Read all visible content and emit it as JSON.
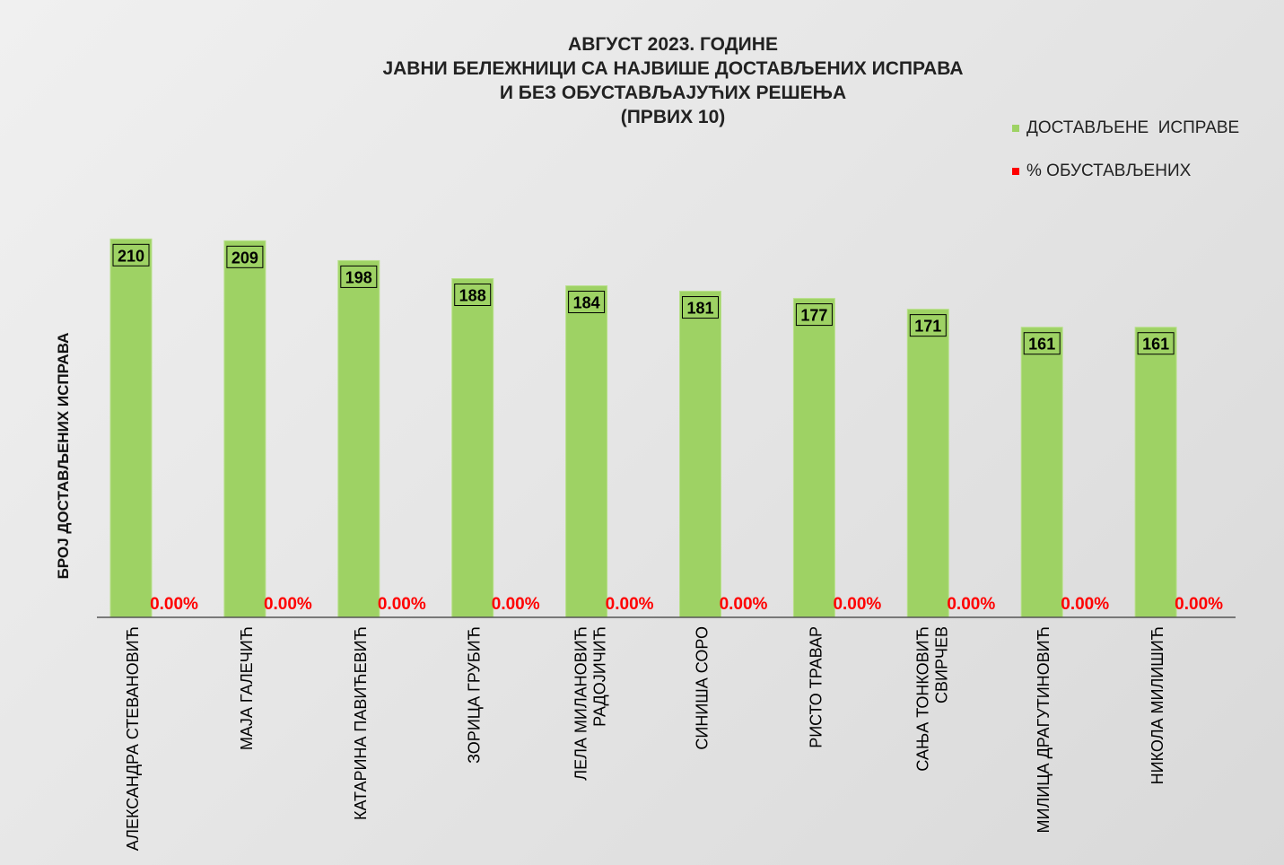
{
  "colors": {
    "bar": "#9ed264",
    "bar_edge": "#b8e08a",
    "pct_text": "#ff0000",
    "label_box": "#9ed264",
    "axis": "#555555"
  },
  "chart_data": {
    "type": "bar",
    "title_lines": [
      "АВГУСТ 2023. ГОДИНЕ",
      "ЈАВНИ БЕЛЕЖНИЦИ СА НАЈВИШЕ ДОСТАВЉЕНИХ ИСПРАВА",
      "И БЕЗ ОБУСТАВЉАЈУЋИХ РЕШЕЊА",
      "(ПРВИХ 10)"
    ],
    "ylabel": "БРОЈ ДОСТАВЉЕНИХ ИСПРАВА",
    "xlabel": "",
    "ylim": [
      0,
      250
    ],
    "grid": false,
    "legend_position": "top-right",
    "categories": [
      [
        "АЛЕКСАНДРА СТЕВАНОВИЋ"
      ],
      [
        "МАЈА ГАЛЕЧИЋ"
      ],
      [
        "КАТАРИНА ПАВИЋЕВИЋ"
      ],
      [
        "ЗОРИЦА ГРУБИЋ"
      ],
      [
        "ЛЕЛА МИЛАНОВИЋ",
        "РАДОЈИЧИЋ"
      ],
      [
        "СИНИША СОРО"
      ],
      [
        "РИСТО ТРАВАР"
      ],
      [
        "САЊА ТОНКОВИЋ",
        "СВИРЧЕВ"
      ],
      [
        "МИЛИЦА ДРАГУТИНОВИЋ"
      ],
      [
        "НИКОЛА МИЛИШИЋ"
      ]
    ],
    "series": [
      {
        "name": "ДОСТАВЉЕНЕ  ИСПРАВЕ",
        "values": [
          210,
          209,
          198,
          188,
          184,
          181,
          177,
          171,
          161,
          161
        ],
        "labels": [
          "210",
          "209",
          "198",
          "188",
          "184",
          "181",
          "177",
          "171",
          "161",
          "161"
        ]
      },
      {
        "name": "% ОБУСТАВЉЕНИХ",
        "values": [
          0,
          0,
          0,
          0,
          0,
          0,
          0,
          0,
          0,
          0
        ],
        "labels": [
          "0.00%",
          "0.00%",
          "0.00%",
          "0.00%",
          "0.00%",
          "0.00%",
          "0.00%",
          "0.00%",
          "0.00%",
          "0.00%"
        ]
      }
    ]
  }
}
